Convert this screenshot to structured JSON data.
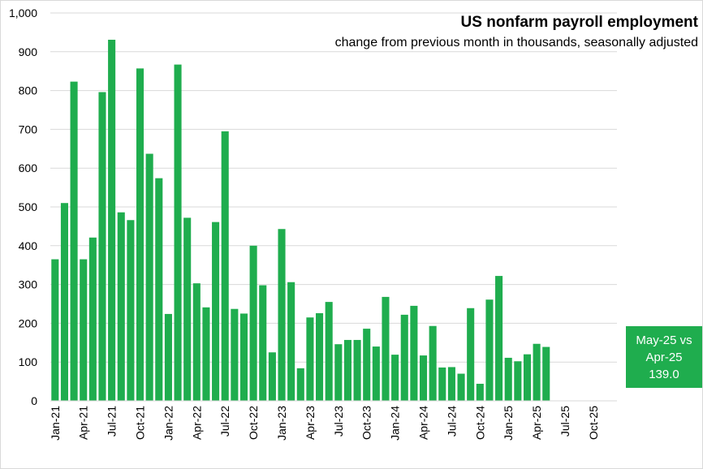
{
  "chart_data": {
    "type": "bar",
    "title": "US nonfarm payroll employment",
    "subtitle": "change from previous month in thousands, seasonally adjusted",
    "ylim": [
      0,
      1000
    ],
    "yticks": [
      0,
      100,
      200,
      300,
      400,
      500,
      600,
      700,
      800,
      900,
      1000
    ],
    "ytick_labels": [
      "0",
      "100",
      "200",
      "300",
      "400",
      "500",
      "600",
      "700",
      "800",
      "900",
      "1,000"
    ],
    "grid": true,
    "bar_color": "#1fad4e",
    "categories": [
      "Jan-21",
      "Feb-21",
      "Mar-21",
      "Apr-21",
      "May-21",
      "Jun-21",
      "Jul-21",
      "Aug-21",
      "Sep-21",
      "Oct-21",
      "Nov-21",
      "Dec-21",
      "Jan-22",
      "Feb-22",
      "Mar-22",
      "Apr-22",
      "May-22",
      "Jun-22",
      "Jul-22",
      "Aug-22",
      "Sep-22",
      "Oct-22",
      "Nov-22",
      "Dec-22",
      "Jan-23",
      "Feb-23",
      "Mar-23",
      "Apr-23",
      "May-23",
      "Jun-23",
      "Jul-23",
      "Aug-23",
      "Sep-23",
      "Oct-23",
      "Nov-23",
      "Dec-23",
      "Jan-24",
      "Feb-24",
      "Mar-24",
      "Apr-24",
      "May-24",
      "Jun-24",
      "Jul-24",
      "Aug-24",
      "Sep-24",
      "Oct-24",
      "Nov-24",
      "Dec-24",
      "Jan-25",
      "Feb-25",
      "Mar-25",
      "Apr-25",
      "May-25",
      "Jun-25",
      "Jul-25",
      "Aug-25",
      "Sep-25",
      "Oct-25",
      "Nov-25",
      "Dec-25"
    ],
    "values": [
      365,
      510,
      823,
      365,
      421,
      796,
      931,
      486,
      466,
      857,
      637,
      574,
      224,
      867,
      472,
      303,
      241,
      461,
      695,
      237,
      225,
      400,
      298,
      125,
      443,
      306,
      84,
      215,
      226,
      255,
      146,
      157,
      157,
      186,
      140,
      268,
      119,
      222,
      245,
      117,
      193,
      86,
      87,
      70,
      239,
      44,
      261,
      322,
      111,
      102,
      120,
      147,
      139,
      null,
      null,
      null,
      null,
      null,
      null,
      null
    ],
    "xtick_labels": [
      "Jan-21",
      "Apr-21",
      "Jul-21",
      "Oct-21",
      "Jan-22",
      "Apr-22",
      "Jul-22",
      "Oct-22",
      "Jan-23",
      "Apr-23",
      "Jul-23",
      "Oct-23",
      "Jan-24",
      "Apr-24",
      "Jul-24",
      "Oct-24",
      "Jan-25",
      "Apr-25",
      "Jul-25",
      "Oct-25"
    ],
    "xtick_indices": [
      0,
      3,
      6,
      9,
      12,
      15,
      18,
      21,
      24,
      27,
      30,
      33,
      36,
      39,
      42,
      45,
      48,
      51,
      54,
      57
    ]
  },
  "callout": {
    "line1": "May-25  vs",
    "line2": "Apr-25",
    "value": "139.0"
  }
}
